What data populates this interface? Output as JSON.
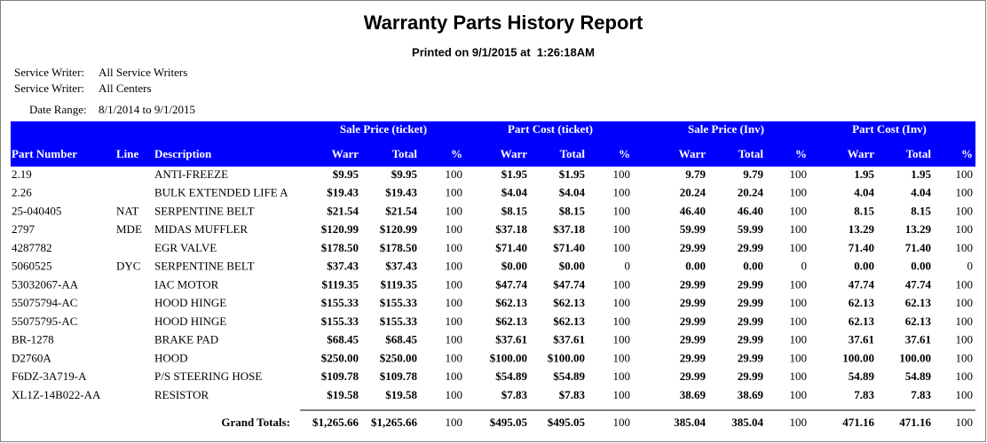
{
  "header": {
    "title": "Warranty Parts History Report",
    "printed": "Printed on 9/1/2015 at  1:26:18AM"
  },
  "filters": [
    {
      "label": "Service Writer:",
      "value": "All Service Writers"
    },
    {
      "label": "Service Writer:",
      "value": "All Centers"
    },
    {
      "label": "Date Range:",
      "value": "8/1/2014 to 9/1/2015"
    }
  ],
  "table": {
    "groups": [
      "Sale Price (ticket)",
      "Part Cost (ticket)",
      "Sale Price (Inv)",
      "Part Cost (Inv)"
    ],
    "columns": [
      "Part Number",
      "Line",
      "Description",
      "Warr",
      "Total",
      "%",
      "Warr",
      "Total",
      "%",
      "Warr",
      "Total",
      "%",
      "Warr",
      "Total",
      "%"
    ],
    "rows": [
      [
        "2.19",
        null,
        "ANTI-FREEZE",
        "$9.95",
        "$9.95",
        "100",
        "$1.95",
        "$1.95",
        "100",
        "9.79",
        "9.79",
        "100",
        "1.95",
        "1.95",
        "100"
      ],
      [
        "2.26",
        null,
        "BULK EXTENDED LIFE A",
        "$19.43",
        "$19.43",
        "100",
        "$4.04",
        "$4.04",
        "100",
        "20.24",
        "20.24",
        "100",
        "4.04",
        "4.04",
        "100"
      ],
      [
        "25-040405",
        "NAT",
        "SERPENTINE BELT",
        "$21.54",
        "$21.54",
        "100",
        "$8.15",
        "$8.15",
        "100",
        "46.40",
        "46.40",
        "100",
        "8.15",
        "8.15",
        "100"
      ],
      [
        "2797",
        "MDE",
        "MIDAS MUFFLER",
        "$120.99",
        "$120.99",
        "100",
        "$37.18",
        "$37.18",
        "100",
        "59.99",
        "59.99",
        "100",
        "13.29",
        "13.29",
        "100"
      ],
      [
        "4287782",
        null,
        "EGR VALVE",
        "$178.50",
        "$178.50",
        "100",
        "$71.40",
        "$71.40",
        "100",
        "29.99",
        "29.99",
        "100",
        "71.40",
        "71.40",
        "100"
      ],
      [
        "5060525",
        "DYC",
        "SERPENTINE BELT",
        "$37.43",
        "$37.43",
        "100",
        "$0.00",
        "$0.00",
        "0",
        "0.00",
        "0.00",
        "0",
        "0.00",
        "0.00",
        "0"
      ],
      [
        "53032067-AA",
        null,
        "IAC MOTOR",
        "$119.35",
        "$119.35",
        "100",
        "$47.74",
        "$47.74",
        "100",
        "29.99",
        "29.99",
        "100",
        "47.74",
        "47.74",
        "100"
      ],
      [
        "55075794-AC",
        null,
        "HOOD HINGE",
        "$155.33",
        "$155.33",
        "100",
        "$62.13",
        "$62.13",
        "100",
        "29.99",
        "29.99",
        "100",
        "62.13",
        "62.13",
        "100"
      ],
      [
        "55075795-AC",
        null,
        "HOOD HINGE",
        "$155.33",
        "$155.33",
        "100",
        "$62.13",
        "$62.13",
        "100",
        "29.99",
        "29.99",
        "100",
        "62.13",
        "62.13",
        "100"
      ],
      [
        "BR-1278",
        null,
        "BRAKE PAD",
        "$68.45",
        "$68.45",
        "100",
        "$37.61",
        "$37.61",
        "100",
        "29.99",
        "29.99",
        "100",
        "37.61",
        "37.61",
        "100"
      ],
      [
        "D2760A",
        null,
        "HOOD",
        "$250.00",
        "$250.00",
        "100",
        "$100.00",
        "$100.00",
        "100",
        "29.99",
        "29.99",
        "100",
        "100.00",
        "100.00",
        "100"
      ],
      [
        "F6DZ-3A719-A",
        null,
        "P/S STEERING HOSE",
        "$109.78",
        "$109.78",
        "100",
        "$54.89",
        "$54.89",
        "100",
        "29.99",
        "29.99",
        "100",
        "54.89",
        "54.89",
        "100"
      ],
      [
        "XL1Z-14B022-AA",
        null,
        "RESISTOR",
        "$19.58",
        "$19.58",
        "100",
        "$7.83",
        "$7.83",
        "100",
        "38.69",
        "38.69",
        "100",
        "7.83",
        "7.83",
        "100"
      ]
    ],
    "totals": {
      "label": "Grand Totals:",
      "values": [
        "$1,265.66",
        "$1,265.66",
        "100",
        "$495.05",
        "$495.05",
        "100",
        "385.04",
        "385.04",
        "100",
        "471.16",
        "471.16",
        "100"
      ]
    }
  }
}
